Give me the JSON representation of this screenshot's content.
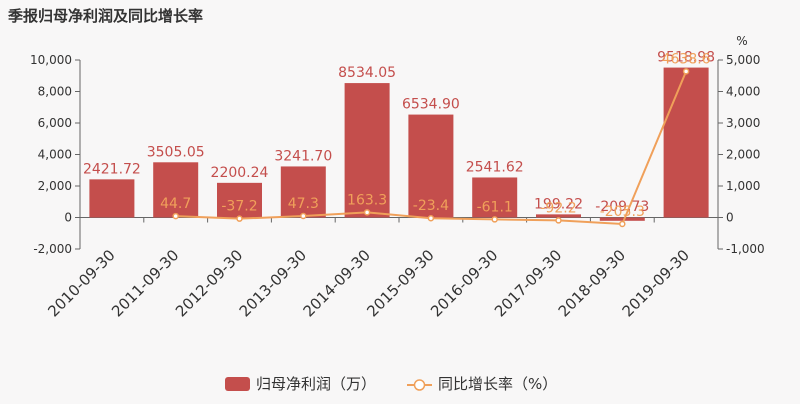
{
  "chart_data": {
    "type": "bar",
    "title": "季报归母净利润及同比增长率",
    "categories": [
      "2010-09-30",
      "2011-09-30",
      "2012-09-30",
      "2013-09-30",
      "2014-09-30",
      "2015-09-30",
      "2016-09-30",
      "2017-09-30",
      "2018-09-30",
      "2019-09-30"
    ],
    "series": [
      {
        "name": "归母净利润（万）",
        "type": "bar",
        "axis": "left",
        "values": [
          2421.72,
          3505.05,
          2200.24,
          3241.7,
          8534.05,
          6534.9,
          2541.62,
          199.22,
          -209.73,
          9518.98
        ],
        "labels": [
          "2421.72",
          "3505.05",
          "2200.24",
          "3241.70",
          "8534.05",
          "6534.90",
          "2541.62",
          "199.22",
          "-209.73",
          "9518.98"
        ]
      },
      {
        "name": "同比增长率（%）",
        "type": "line",
        "axis": "right",
        "values": [
          null,
          44.7,
          -37.2,
          47.3,
          163.3,
          -23.4,
          -61.1,
          -92.2,
          -205.3,
          4638.6
        ],
        "labels": [
          "",
          "44.7",
          "-37.2",
          "47.3",
          "163.3",
          "-23.4",
          "-61.1",
          "-92.2",
          "-205.3",
          "4638.6"
        ]
      }
    ],
    "y_left": {
      "min": -2000,
      "max": 10000,
      "ticks": [
        "-2,000",
        "0",
        "2,000",
        "4,000",
        "6,000",
        "8,000",
        "10,000"
      ]
    },
    "y_right": {
      "min": -1000,
      "max": 5000,
      "label": "%",
      "ticks": [
        "-1,000",
        "0",
        "1,000",
        "2,000",
        "3,000",
        "4,000",
        "5,000"
      ]
    },
    "legend_position": "bottom-center",
    "grid": false,
    "colors": {
      "bar": "#c44e4c",
      "line": "#f0a05a",
      "bar_label": "#c44e4c",
      "line_label": "#f0a05a"
    }
  }
}
